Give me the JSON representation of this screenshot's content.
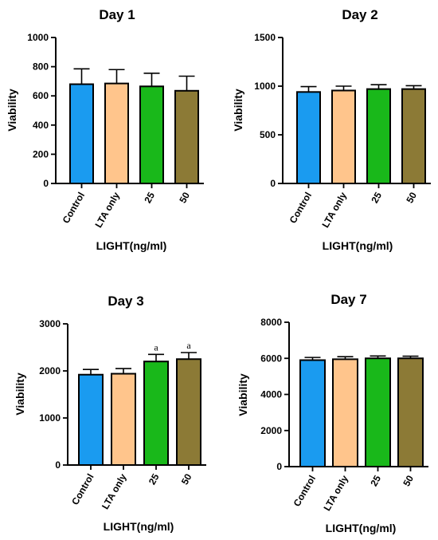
{
  "colors": {
    "series": [
      "#1a9bf0",
      "#ffc58c",
      "#19b81a",
      "#8c7a36"
    ],
    "outline": "#000000"
  },
  "chart_data": [
    {
      "type": "bar",
      "title": "Day 1",
      "xlabel": "LIGHT(ng/ml)",
      "ylabel": "Viability",
      "categories": [
        "Control",
        "LTA only",
        "25",
        "50"
      ],
      "values": [
        680,
        685,
        665,
        635
      ],
      "errors": [
        105,
        95,
        90,
        100
      ],
      "annotations": [
        "",
        "",
        "",
        ""
      ],
      "ylim": [
        0,
        1000
      ],
      "yticks": [
        0,
        200,
        400,
        600,
        800,
        1000
      ],
      "ytick_labels": [
        "0",
        "200",
        "400",
        "600",
        "800",
        "1000"
      ]
    },
    {
      "type": "bar",
      "title": "Day 2",
      "xlabel": "LIGHT(ng/ml)",
      "ylabel": "Viability",
      "categories": [
        "Control",
        "LTA only",
        "25",
        "50"
      ],
      "values": [
        940,
        955,
        970,
        970
      ],
      "errors": [
        55,
        45,
        45,
        35
      ],
      "annotations": [
        "",
        "",
        "",
        ""
      ],
      "ylim": [
        0,
        1500
      ],
      "yticks": [
        0,
        500,
        1000,
        1500
      ],
      "ytick_labels": [
        "0",
        "500",
        "1000",
        "1500"
      ]
    },
    {
      "type": "bar",
      "title": "Day 3",
      "xlabel": "LIGHT(ng/ml)",
      "ylabel": "Viability",
      "categories": [
        "Control",
        "LTA only",
        "25",
        "50"
      ],
      "values": [
        1920,
        1940,
        2200,
        2250
      ],
      "errors": [
        110,
        110,
        150,
        140
      ],
      "annotations": [
        "",
        "",
        "a",
        "a"
      ],
      "ylim": [
        0,
        3000
      ],
      "yticks": [
        0,
        1000,
        2000,
        3000
      ],
      "ytick_labels": [
        "0",
        "1000",
        "2000",
        "3000"
      ]
    },
    {
      "type": "bar",
      "title": "Day 7",
      "xlabel": "LIGHT(ng/ml)",
      "ylabel": "Viability",
      "categories": [
        "Control",
        "LTA only",
        "25",
        "50"
      ],
      "values": [
        5900,
        5950,
        6000,
        6000
      ],
      "errors": [
        150,
        140,
        130,
        120
      ],
      "annotations": [
        "",
        "",
        "",
        ""
      ],
      "ylim": [
        0,
        8000
      ],
      "yticks": [
        0,
        2000,
        4000,
        6000,
        8000
      ],
      "ytick_labels": [
        "0",
        "2000",
        "4000",
        "6000",
        "8000"
      ]
    }
  ]
}
